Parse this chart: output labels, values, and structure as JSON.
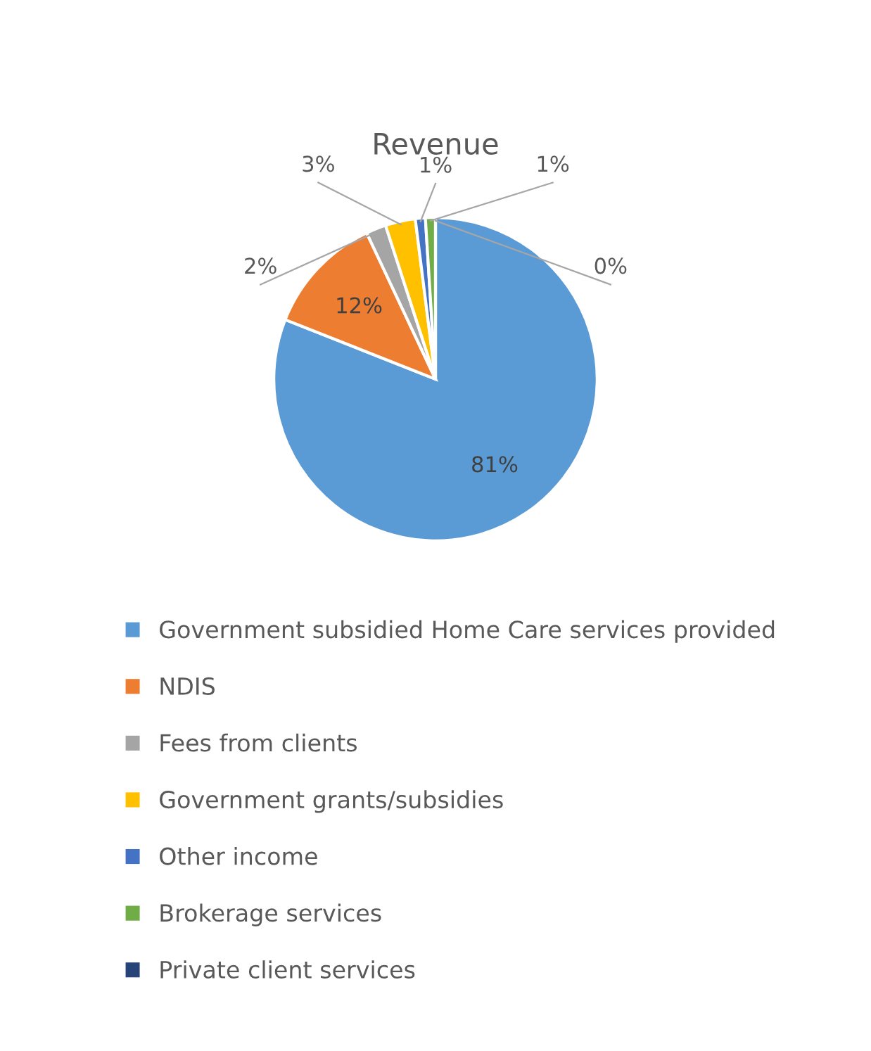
{
  "chart_data": {
    "type": "pie",
    "title": "Revenue",
    "categories": [
      "Government subsidied Home Care services provided",
      "NDIS",
      "Fees from clients",
      "Government grants/subsidies",
      "Other income",
      "Brokerage services",
      "Private client services"
    ],
    "values": [
      81,
      12,
      2,
      3,
      1,
      1,
      0
    ],
    "colors": [
      "#5b9bd5",
      "#ed7d31",
      "#a5a5a5",
      "#ffc000",
      "#4472c4",
      "#70ad47",
      "#264478"
    ],
    "value_labels": [
      "81%",
      "12%",
      "2%",
      "3%",
      "1%",
      "1%",
      "0%"
    ],
    "legend": "bottom"
  }
}
